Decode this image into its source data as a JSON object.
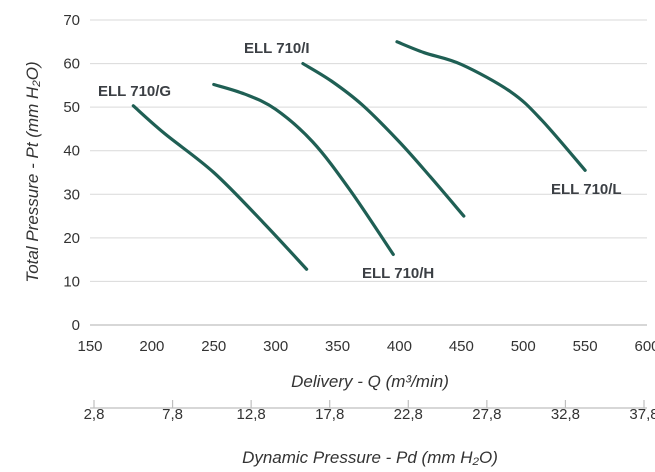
{
  "chart_data": {
    "type": "line",
    "ylabel": "Total Pressure - Pt (mm H₂O)",
    "xlabel": "Delivery - Q (m³/min)",
    "x2label": "Dynamic Pressure - Pd (mm H₂O)",
    "xlim": [
      150,
      600
    ],
    "ylim": [
      0,
      70
    ],
    "x_ticks": [
      "150",
      "200",
      "250",
      "300",
      "350",
      "400",
      "450",
      "500",
      "550",
      "600"
    ],
    "y_ticks": [
      "0",
      "10",
      "20",
      "30",
      "40",
      "50",
      "60",
      "70"
    ],
    "x2_ticks": [
      "2,8",
      "7,8",
      "12,8",
      "17,8",
      "22,8",
      "27,8",
      "32,8",
      "37,8"
    ],
    "grid": true,
    "line_color": "#1f5f54",
    "series": [
      {
        "name": "ELL 710/G",
        "points": [
          [
            185,
            50.3
          ],
          [
            210,
            44
          ],
          [
            250,
            35
          ],
          [
            290,
            23.5
          ],
          [
            325,
            12.8
          ]
        ]
      },
      {
        "name": "ELL 710/H",
        "points": [
          [
            250,
            55.2
          ],
          [
            275,
            53
          ],
          [
            300,
            49.5
          ],
          [
            330,
            42
          ],
          [
            360,
            31
          ],
          [
            395,
            16.2
          ]
        ]
      },
      {
        "name": "ELL 710/I",
        "points": [
          [
            322,
            60
          ],
          [
            345,
            56
          ],
          [
            370,
            50.5
          ],
          [
            400,
            42
          ],
          [
            425,
            34
          ],
          [
            452,
            25
          ]
        ]
      },
      {
        "name": "ELL 710/L",
        "points": [
          [
            398,
            65
          ],
          [
            420,
            62.5
          ],
          [
            450,
            59.8
          ],
          [
            490,
            53.5
          ],
          [
            515,
            47
          ],
          [
            550,
            35.5
          ]
        ]
      }
    ]
  }
}
